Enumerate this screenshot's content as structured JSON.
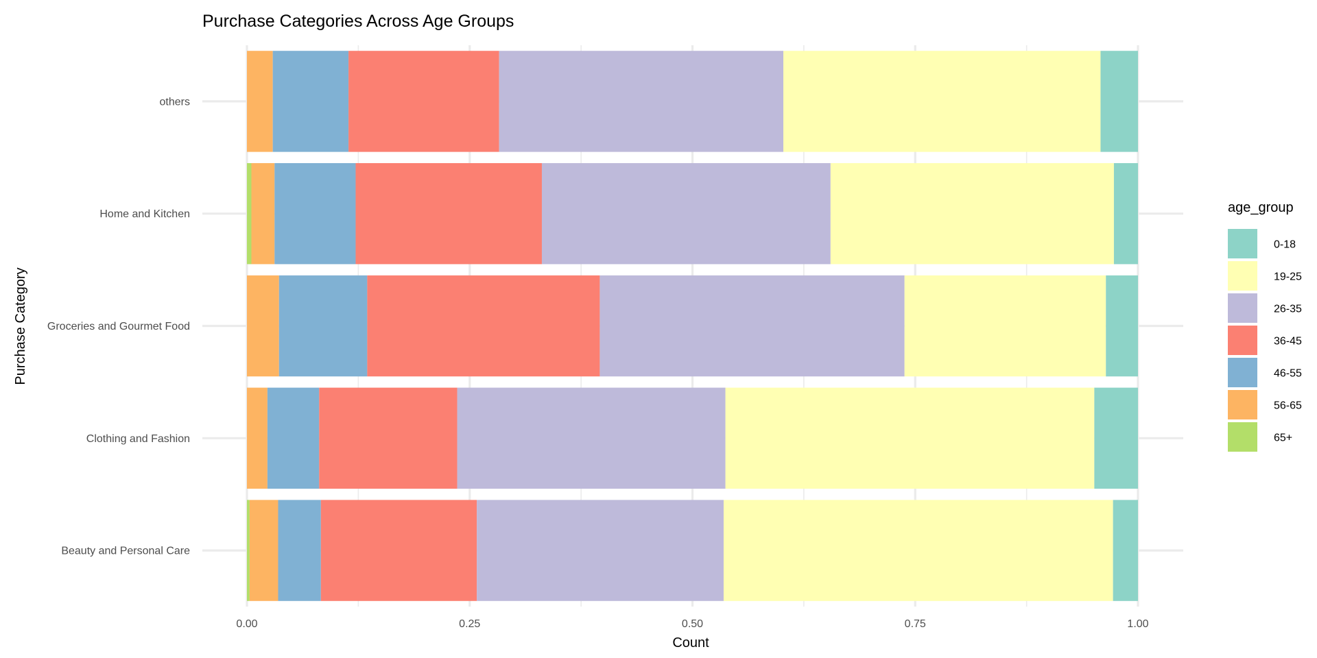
{
  "chart_data": {
    "type": "bar",
    "orientation": "horizontal",
    "stacked": "fill",
    "title": "Purchase Categories Across Age Groups",
    "xlabel": "Count",
    "ylabel": "Purchase Category",
    "xlim": [
      0,
      1
    ],
    "x_ticks": [
      "0.00",
      "0.25",
      "0.50",
      "0.75",
      "1.00"
    ],
    "x_tick_values": [
      0,
      0.25,
      0.5,
      0.75,
      1.0
    ],
    "grid": true,
    "legend_title": "age_group",
    "legend_position": "right",
    "categories": [
      "others",
      "Home and Kitchen",
      "Groceries and Gourmet Food",
      "Clothing and Fashion",
      "Beauty and Personal Care"
    ],
    "series": [
      {
        "name": "0-18",
        "color": "#8DD3C7",
        "values": [
          0.042,
          0.027,
          0.036,
          0.049,
          0.028
        ]
      },
      {
        "name": "19-25",
        "color": "#FFFFB3",
        "values": [
          0.356,
          0.318,
          0.226,
          0.414,
          0.437
        ]
      },
      {
        "name": "26-35",
        "color": "#BEBADA",
        "values": [
          0.319,
          0.324,
          0.342,
          0.301,
          0.277
        ]
      },
      {
        "name": "36-45",
        "color": "#FB8072",
        "values": [
          0.169,
          0.209,
          0.261,
          0.155,
          0.175
        ]
      },
      {
        "name": "46-55",
        "color": "#80B1D3",
        "values": [
          0.085,
          0.091,
          0.099,
          0.058,
          0.048
        ]
      },
      {
        "name": "56-65",
        "color": "#FDB462",
        "values": [
          0.029,
          0.026,
          0.036,
          0.023,
          0.032
        ]
      },
      {
        "name": "65+",
        "color": "#B3DE69",
        "values": [
          0.0,
          0.005,
          0.0,
          0.0,
          0.003
        ]
      }
    ]
  }
}
